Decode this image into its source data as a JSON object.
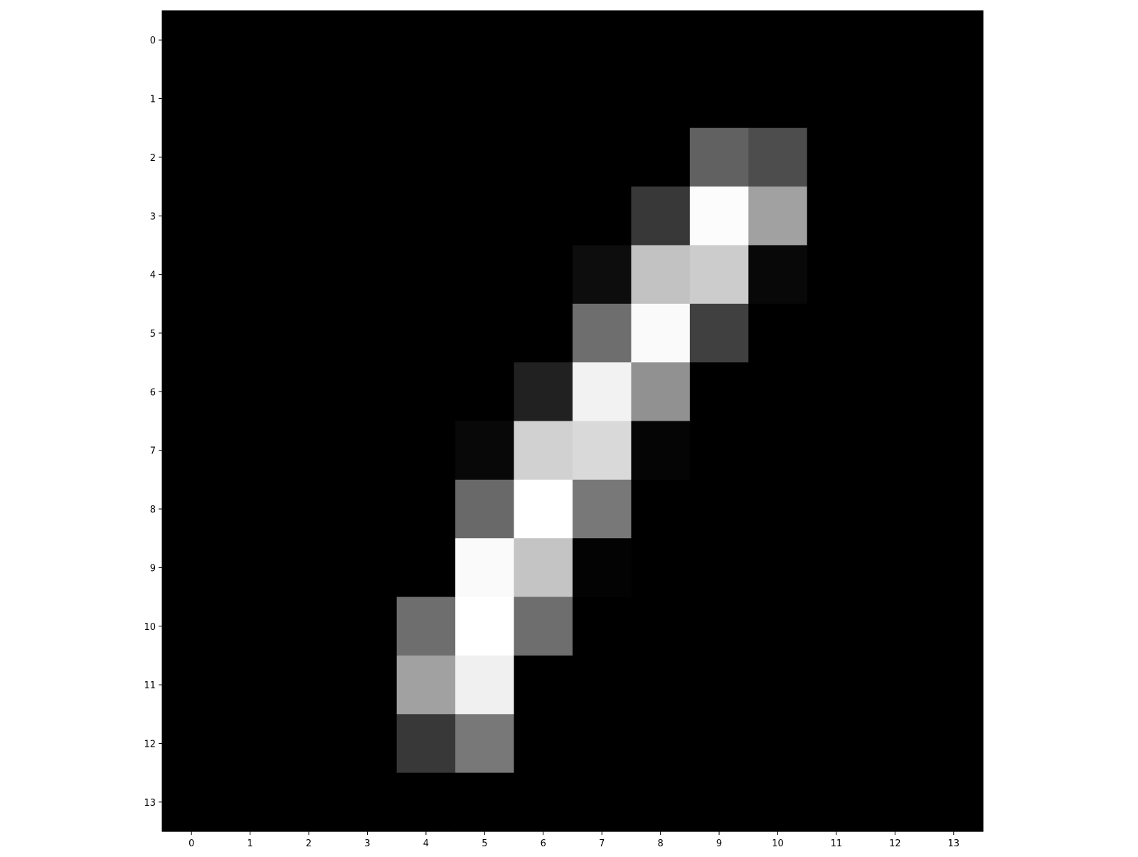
{
  "chart_data": {
    "type": "heatmap",
    "title": "",
    "xlabel": "",
    "ylabel": "",
    "colormap": "gray",
    "value_range": [
      0,
      1
    ],
    "x_ticks": [
      "0",
      "1",
      "2",
      "3",
      "4",
      "5",
      "6",
      "7",
      "8",
      "9",
      "10",
      "11",
      "12",
      "13"
    ],
    "y_ticks": [
      "0",
      "1",
      "2",
      "3",
      "4",
      "5",
      "6",
      "7",
      "8",
      "9",
      "10",
      "11",
      "12",
      "13"
    ],
    "grid": false,
    "rows": 14,
    "cols": 14,
    "values": [
      [
        0,
        0,
        0,
        0,
        0,
        0,
        0,
        0,
        0,
        0,
        0,
        0,
        0,
        0
      ],
      [
        0,
        0,
        0,
        0,
        0,
        0,
        0,
        0,
        0,
        0,
        0,
        0,
        0,
        0
      ],
      [
        0,
        0,
        0,
        0,
        0,
        0,
        0,
        0,
        0,
        0.38,
        0.3,
        0,
        0,
        0
      ],
      [
        0,
        0,
        0,
        0,
        0,
        0,
        0,
        0,
        0.22,
        0.99,
        0.63,
        0,
        0,
        0
      ],
      [
        0,
        0,
        0,
        0,
        0,
        0,
        0,
        0.05,
        0.76,
        0.8,
        0.03,
        0,
        0,
        0
      ],
      [
        0,
        0,
        0,
        0,
        0,
        0,
        0,
        0.43,
        0.98,
        0.25,
        0,
        0,
        0,
        0
      ],
      [
        0,
        0,
        0,
        0,
        0,
        0,
        0.13,
        0.95,
        0.57,
        0,
        0,
        0,
        0,
        0
      ],
      [
        0,
        0,
        0,
        0,
        0,
        0.03,
        0.82,
        0.85,
        0.02,
        0,
        0,
        0,
        0,
        0
      ],
      [
        0,
        0,
        0,
        0,
        0,
        0.41,
        1.0,
        0.47,
        0,
        0,
        0,
        0,
        0,
        0
      ],
      [
        0,
        0,
        0,
        0,
        0,
        0.98,
        0.77,
        0.01,
        0,
        0,
        0,
        0,
        0,
        0
      ],
      [
        0,
        0,
        0,
        0,
        0.43,
        1.0,
        0.43,
        0,
        0,
        0,
        0,
        0,
        0,
        0
      ],
      [
        0,
        0,
        0,
        0,
        0.63,
        0.94,
        0,
        0,
        0,
        0,
        0,
        0,
        0,
        0
      ],
      [
        0,
        0,
        0,
        0,
        0.22,
        0.47,
        0,
        0,
        0,
        0,
        0,
        0,
        0,
        0
      ],
      [
        0,
        0,
        0,
        0,
        0,
        0,
        0,
        0,
        0,
        0,
        0,
        0,
        0,
        0
      ]
    ]
  }
}
